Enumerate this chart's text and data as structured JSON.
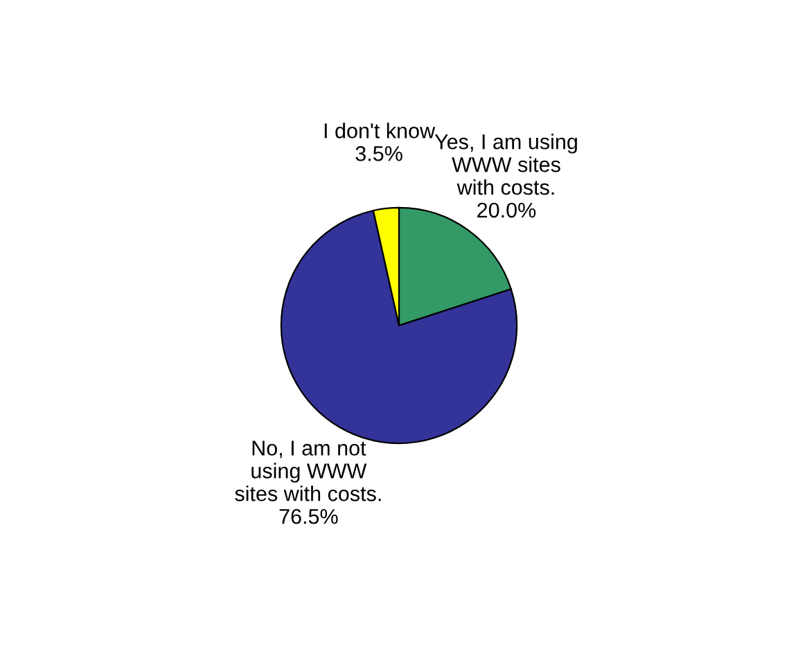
{
  "chart_data": {
    "type": "pie",
    "categories": [
      "Yes, I am using\nWWW sites\nwith costs.",
      "No, I am not\nusing WWW\nsites with costs.",
      "I don't know"
    ],
    "values": [
      20.0,
      76.5,
      3.5
    ],
    "value_labels": [
      "20.0%",
      "76.5%",
      "3.5%"
    ],
    "colors": [
      "#339966",
      "#333399",
      "#ffff00"
    ],
    "legend": false
  }
}
